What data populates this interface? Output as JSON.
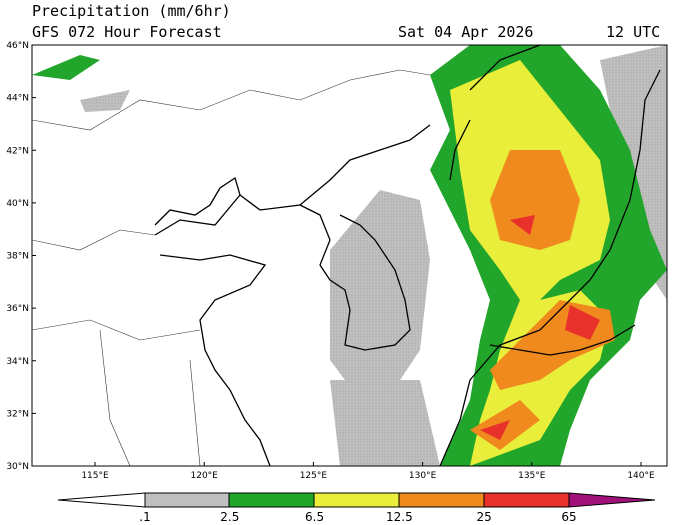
{
  "header": {
    "title": "Precipitation (mm/6hr)",
    "subtitle": "GFS 072 Hour Forecast",
    "date": "Sat 04 Apr 2026",
    "time": "12 UTC"
  },
  "map": {
    "lat_labels": [
      "46°N",
      "44°N",
      "42°N",
      "40°N",
      "38°N",
      "36°N",
      "34°N",
      "32°N",
      "30°N"
    ],
    "lon_labels": [
      "115°E",
      "120°E",
      "125°E",
      "130°E",
      "135°E",
      "140°E"
    ]
  },
  "colorbar": {
    "labels": [
      ".1",
      "2.5",
      "6.5",
      "12.5",
      "25",
      "65"
    ]
  }
}
